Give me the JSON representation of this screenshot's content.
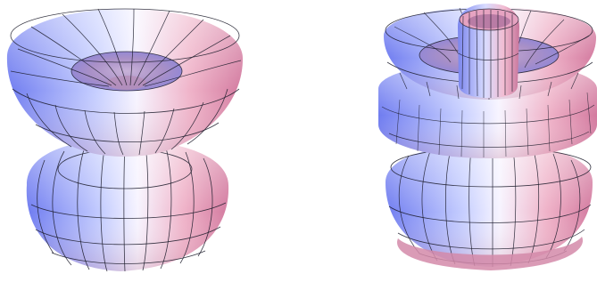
{
  "figures": [
    {
      "name": "left-lobed-surface",
      "lobes": 2,
      "description_type": "dipole-like 3D surface"
    },
    {
      "name": "right-lobed-surface",
      "lobes": 4,
      "description_type": "multi-lobe 3D surface with central tube"
    }
  ],
  "colors": {
    "background": "#ffffff",
    "surface_blue": "#6f7cf0",
    "surface_pink": "#e79ab7",
    "surface_highlight": "#f7f4ff",
    "mesh_line": "#1b1b2a"
  }
}
